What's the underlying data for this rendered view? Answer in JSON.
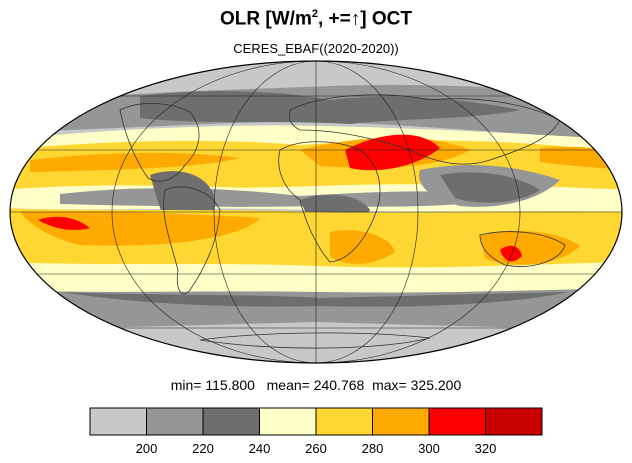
{
  "title_main": "OLR [W/m",
  "title_sup": "2",
  "title_rest": ", +=",
  "title_arrow": "↑",
  "title_end": "] OCT",
  "subtitle": "CERES_EBAF((2020-2020))",
  "stats": {
    "min_label": "min=",
    "min": "115.800",
    "mean_label": "mean=",
    "mean": "240.768",
    "max_label": "max=",
    "max": "325.200"
  },
  "colorbar": {
    "colors": [
      "#c8c8c8",
      "#969696",
      "#6e6e6e",
      "#ffffc8",
      "#ffd732",
      "#ffaa00",
      "#ff0000",
      "#c80000"
    ],
    "ticks": [
      "200",
      "220",
      "240",
      "260",
      "280",
      "300",
      "320"
    ]
  },
  "legend": {
    "bins": [
      {
        "range": "<200",
        "color": "#c8c8c8"
      },
      {
        "range": "200-220",
        "color": "#969696"
      },
      {
        "range": "220-240",
        "color": "#6e6e6e"
      },
      {
        "range": "240-260",
        "color": "#ffffc8"
      },
      {
        "range": "260-280",
        "color": "#ffd732"
      },
      {
        "range": "280-300",
        "color": "#ffaa00"
      },
      {
        "range": "300-320",
        "color": "#ff0000"
      },
      {
        "range": ">320",
        "color": "#c80000"
      }
    ]
  }
}
